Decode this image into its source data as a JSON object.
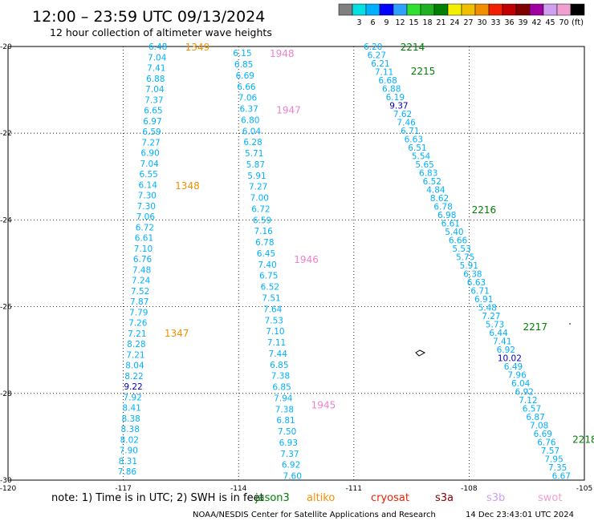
{
  "header": {
    "title": "12:00 – 23:59 UTC 09/13/2024",
    "subtitle": "12 hour collection of altimeter wave heights"
  },
  "legend": {
    "unit": "(ft)",
    "swatches": [
      {
        "color": "#808080",
        "label": ""
      },
      {
        "color": "#00e0e0",
        "label": "3"
      },
      {
        "color": "#00b0ff",
        "label": "6"
      },
      {
        "color": "#0000ff",
        "label": "9"
      },
      {
        "color": "#30a0ff",
        "label": "12"
      },
      {
        "color": "#30e030",
        "label": "15"
      },
      {
        "color": "#20b020",
        "label": "18"
      },
      {
        "color": "#008000",
        "label": "21"
      },
      {
        "color": "#f0f000",
        "label": "24"
      },
      {
        "color": "#f0c000",
        "label": "27"
      },
      {
        "color": "#f09000",
        "label": "30"
      },
      {
        "color": "#f02000",
        "label": "33"
      },
      {
        "color": "#c00000",
        "label": "36"
      },
      {
        "color": "#800000",
        "label": "39"
      },
      {
        "color": "#a000a0",
        "label": "42"
      },
      {
        "color": "#d0a0f0",
        "label": "45"
      },
      {
        "color": "#f0a0d0",
        "label": "70"
      },
      {
        "color": "#000000",
        "label": ""
      }
    ]
  },
  "axes": {
    "lon_range": [
      -120,
      -105
    ],
    "lat_range": [
      -30,
      -20
    ],
    "lon_ticks": [
      {
        "value": -120,
        "label": "-120"
      },
      {
        "value": -117,
        "label": "-117"
      },
      {
        "value": -114,
        "label": "-114"
      },
      {
        "value": -111,
        "label": "-111"
      },
      {
        "value": -108,
        "label": "-108"
      },
      {
        "value": -105,
        "label": "-105"
      }
    ],
    "lat_ticks": [
      {
        "value": -20,
        "label": "-20"
      },
      {
        "value": -22,
        "label": "-22"
      },
      {
        "value": -24,
        "label": "-24"
      },
      {
        "value": -26,
        "label": "-26"
      },
      {
        "value": -28,
        "label": "-28"
      },
      {
        "value": -30,
        "label": "-30"
      }
    ],
    "grid": true
  },
  "tracks": [
    {
      "lon_start": -116.1,
      "lat_start": -20.0,
      "lon_end": -116.9,
      "lat_end": -29.8,
      "color": "#00b0ff",
      "values": [
        "6.48",
        "7.04",
        "7.41",
        "6.88",
        "7.04",
        "7.37",
        "6.65",
        "6.97",
        "6.59",
        "7.27",
        "6.90",
        "7.04",
        "6.55",
        "6.14",
        "7.30",
        "7.30",
        "7.06",
        "6.72",
        "6.61",
        "7.10",
        "6.76",
        "7.48",
        "7.24",
        "7.52",
        "7.87",
        "7.79",
        "7.26",
        "7.21",
        "8.28",
        "7.21",
        "8.04",
        "8.22",
        "9.22",
        "7.92",
        "8.41",
        "8.38",
        "8.38",
        "8.02",
        "7.90",
        "8.31",
        "7.86"
      ],
      "time_labels": [
        {
          "text": "1349",
          "lat": -20.0,
          "color": "#f09000"
        },
        {
          "text": "1348",
          "lat": -23.2,
          "color": "#f09000"
        },
        {
          "text": "1347",
          "lat": -26.6,
          "color": "#f09000"
        }
      ]
    },
    {
      "lon_start": -113.9,
      "lat_start": -20.15,
      "lon_end": -112.6,
      "lat_end": -29.9,
      "color": "#00b0ff",
      "values": [
        "6.15",
        "6.85",
        "6.69",
        "6.66",
        "7.06",
        "6.37",
        "6.80",
        "6.04",
        "6.28",
        "5.71",
        "5.87",
        "5.91",
        "7.27",
        "7.00",
        "6.72",
        "6.59",
        "7.16",
        "6.78",
        "6.45",
        "7.40",
        "6.75",
        "6.52",
        "7.51",
        "7.64",
        "7.53",
        "7.10",
        "7.11",
        "7.44",
        "6.85",
        "7.38",
        "6.85",
        "7.94",
        "7.38",
        "6.81",
        "7.50",
        "6.93",
        "7.37",
        "6.92",
        "7.60"
      ],
      "time_labels": [
        {
          "text": "1948",
          "lat": -20.15,
          "color": "#f080d0"
        },
        {
          "text": "1947",
          "lat": -21.45,
          "color": "#f080d0"
        },
        {
          "text": "1946",
          "lat": -24.9,
          "color": "#f080d0"
        },
        {
          "text": "1945",
          "lat": -28.25,
          "color": "#f080d0"
        }
      ]
    },
    {
      "lon_start": -110.5,
      "lat_start": -20.0,
      "lon_end": -105.6,
      "lat_end": -29.9,
      "color": "#00b0ff",
      "values": [
        "6.20",
        "6.27",
        "6.21",
        "7.11",
        "6.68",
        "6.88",
        "6.19",
        "9.37",
        "7.62",
        "7.46",
        "6.71",
        "6.63",
        "6.51",
        "5.54",
        "5.65",
        "6.83",
        "6.52",
        "4.84",
        "8.62",
        "6.78",
        "6.98",
        "6.61",
        "5.40",
        "6.66",
        "5.53",
        "5.75",
        "5.91",
        "6.38",
        "6.63",
        "6.71",
        "6.91",
        "5.48",
        "7.27",
        "5.73",
        "6.44",
        "7.41",
        "6.92",
        "10.02",
        "6.49",
        "7.96",
        "6.04",
        "6.92",
        "7.12",
        "6.57",
        "6.87",
        "7.08",
        "6.69",
        "6.76",
        "7.57",
        "7.95",
        "7.35",
        "6.67"
      ],
      "time_labels": [
        {
          "text": "2214",
          "lat": -20.0,
          "color": "#008000"
        },
        {
          "text": "2215",
          "lat": -20.55,
          "color": "#008000"
        },
        {
          "text": "2216",
          "lat": -23.75,
          "color": "#008000"
        },
        {
          "text": "2217",
          "lat": -26.45,
          "color": "#008000"
        },
        {
          "text": "2218",
          "lat": -29.05,
          "color": "#008000"
        }
      ]
    }
  ],
  "footer": {
    "note": "note: 1) Time is in UTC; 2) SWH is in feet",
    "satellites": [
      {
        "name": "jason3",
        "color": "#008000"
      },
      {
        "name": "altiko",
        "color": "#f09000"
      },
      {
        "name": "cryosat",
        "color": "#f02000"
      },
      {
        "name": "s3a",
        "color": "#800000"
      },
      {
        "name": "s3b",
        "color": "#d0a0f0"
      },
      {
        "name": "swot",
        "color": "#f0a0d0"
      }
    ],
    "credit": "NOAA/NESDIS Center for Satellite Applications and Research",
    "timestamp": "14 Dec 23:43:01 UTC 2024"
  }
}
